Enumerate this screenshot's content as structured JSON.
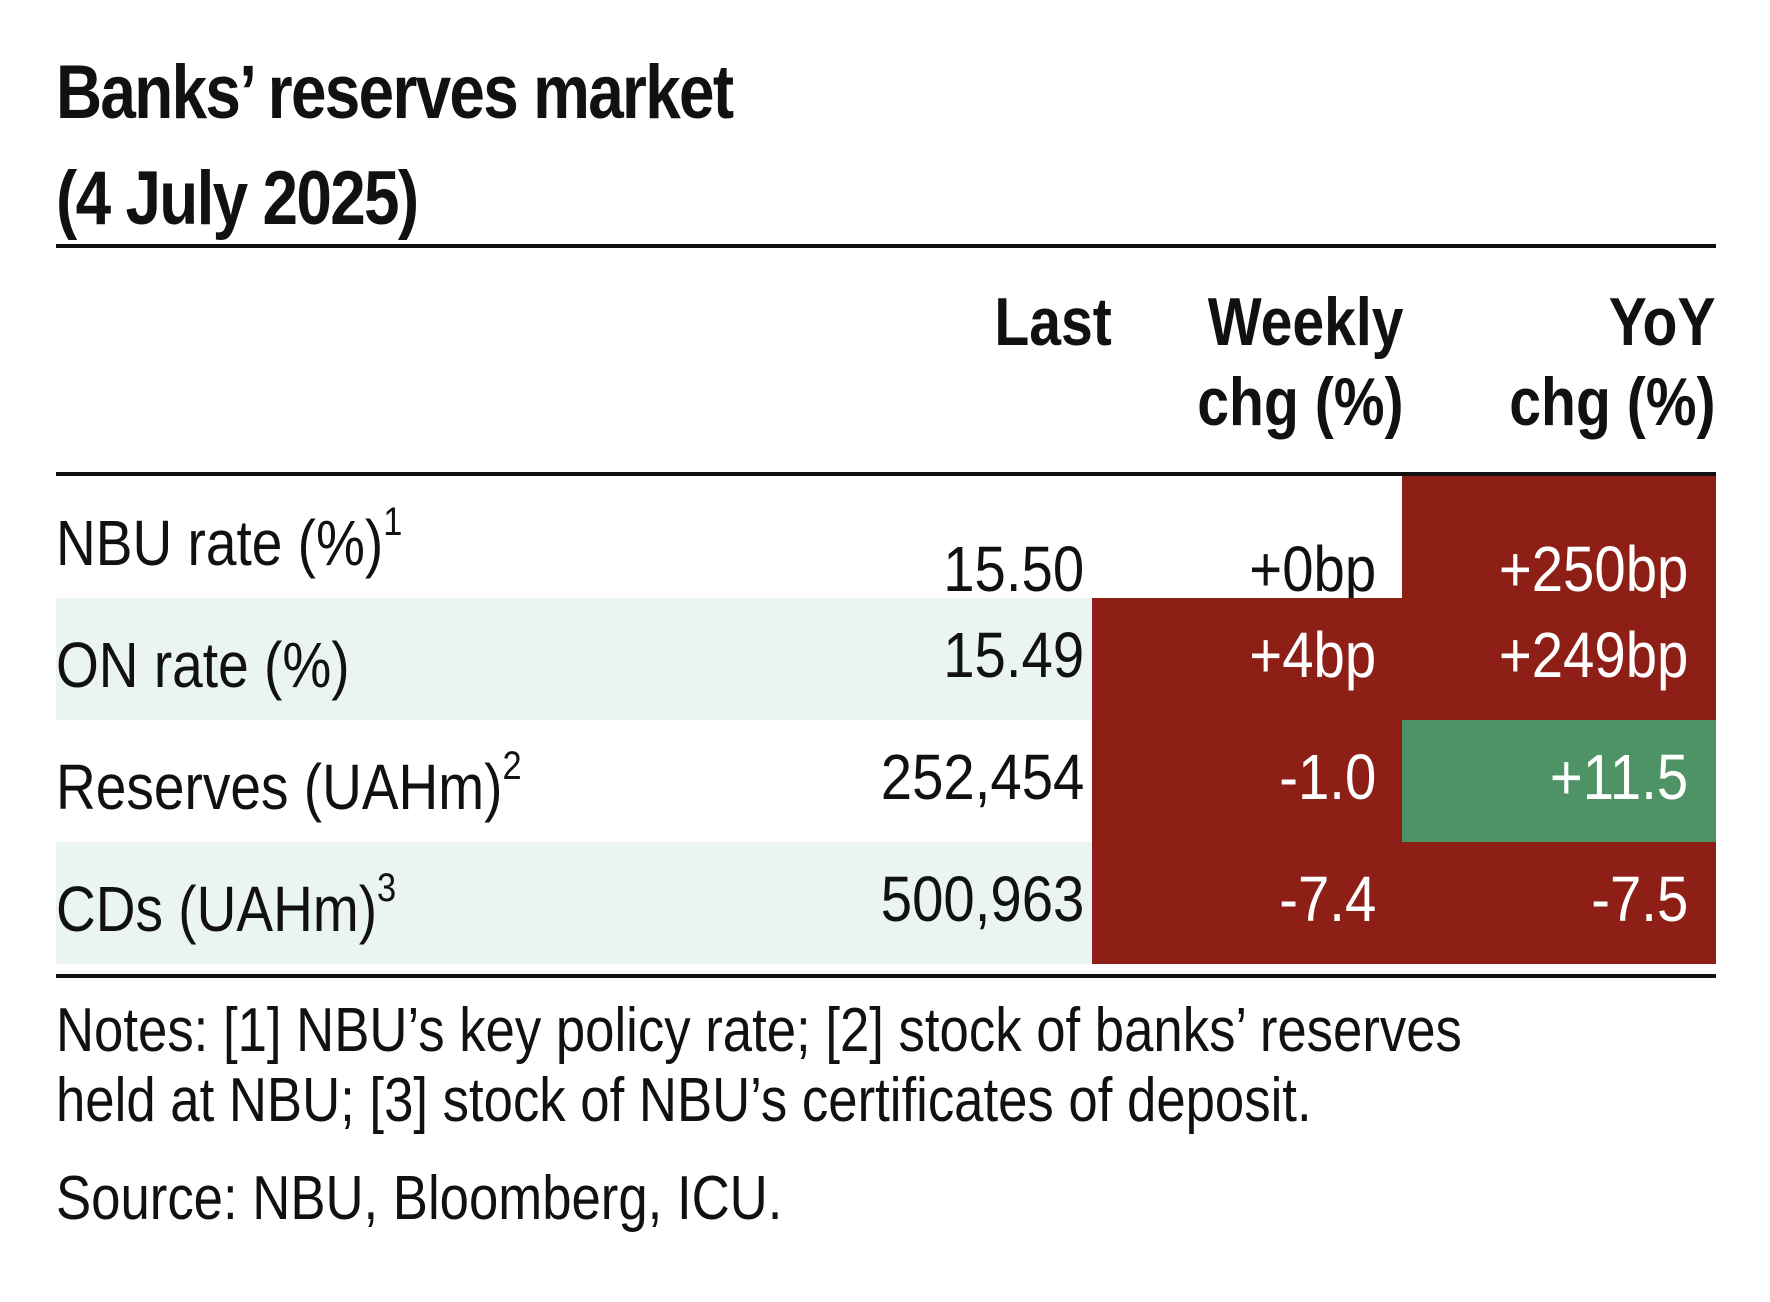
{
  "title": {
    "line1": "Banks’ reserves market",
    "line2": "(4 July 2025)"
  },
  "columns": [
    {
      "line1": "Last",
      "line2": ""
    },
    {
      "line1": "Weekly",
      "line2": "chg (%)"
    },
    {
      "line1": "YoY",
      "line2": "chg (%)"
    }
  ],
  "colors": {
    "positive_heat": "#8e1f17",
    "negative_heat": "#4e9366",
    "row_shade": "#eaf4f2"
  },
  "chart_data": {
    "type": "table",
    "title": "Banks’ reserves market (4 July 2025)",
    "columns": [
      "Last",
      "Weekly chg (%)",
      "YoY chg (%)"
    ],
    "rows": [
      {
        "label": "NBU rate (%)",
        "footnote": "1",
        "last": "15.50",
        "weekly": "+0bp",
        "yoy": "+250bp",
        "weekly_heat": "none",
        "yoy_heat": "red"
      },
      {
        "label": "ON rate (%)",
        "footnote": "",
        "last": "15.49",
        "weekly": "+4bp",
        "yoy": "+249bp",
        "weekly_heat": "red",
        "yoy_heat": "red"
      },
      {
        "label": "Reserves (UAHm)",
        "footnote": "2",
        "last": "252,454",
        "weekly": "-1.0",
        "yoy": "+11.5",
        "weekly_heat": "red",
        "yoy_heat": "green"
      },
      {
        "label": "CDs (UAHm)",
        "footnote": "3",
        "last": "500,963",
        "weekly": "-7.4",
        "yoy": "-7.5",
        "weekly_heat": "red",
        "yoy_heat": "red"
      }
    ]
  },
  "notes": {
    "line1": "Notes: [1] NBU’s key policy rate; [2] stock of banks’ reserves",
    "line2": "held at NBU; [3] stock of NBU’s certificates of deposit."
  },
  "source": "Source: NBU, Bloomberg, ICU."
}
